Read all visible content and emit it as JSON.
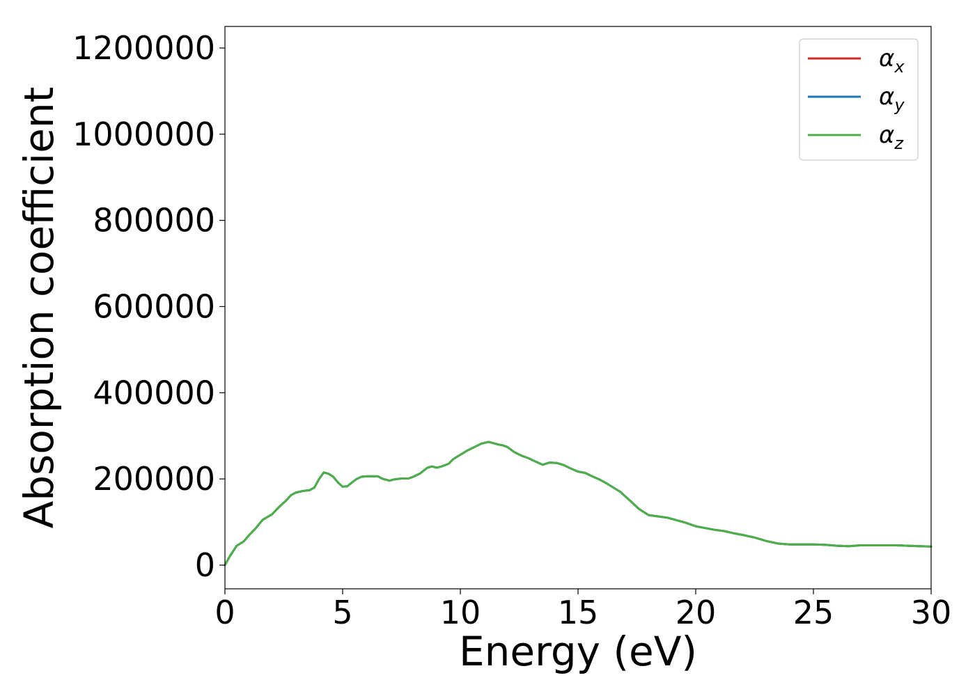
{
  "chart_data": {
    "type": "line",
    "title": "",
    "xlabel": "Energy (eV)",
    "ylabel": "Absorption coefficient",
    "xlim": [
      0,
      30
    ],
    "ylim": [
      -55000,
      1250000
    ],
    "xticks": [
      0,
      5,
      10,
      15,
      20,
      25,
      30
    ],
    "xtick_labels": [
      "0",
      "5",
      "10",
      "15",
      "20",
      "25",
      "30"
    ],
    "yticks": [
      0,
      200000,
      400000,
      600000,
      800000,
      1000000,
      1200000
    ],
    "ytick_labels": [
      "0",
      "200000",
      "400000",
      "600000",
      "800000",
      "1000000",
      "1200000"
    ],
    "grid": false,
    "legend_position": "top-right",
    "legend": [
      {
        "symbol": "α",
        "subscript": "x",
        "color": "#d62728"
      },
      {
        "symbol": "α",
        "subscript": "y",
        "color": "#1f77b4"
      },
      {
        "symbol": "α",
        "subscript": "z",
        "color": "#4daf4a"
      }
    ],
    "x": [
      0,
      0.2,
      0.5,
      0.8,
      1.0,
      1.3,
      1.6,
      2.0,
      2.3,
      2.6,
      2.8,
      3.0,
      3.3,
      3.6,
      3.8,
      4.0,
      4.2,
      4.4,
      4.6,
      4.8,
      5.0,
      5.2,
      5.4,
      5.6,
      5.8,
      6.0,
      6.2,
      6.5,
      6.7,
      7.0,
      7.2,
      7.5,
      7.8,
      8.0,
      8.3,
      8.6,
      8.8,
      9.0,
      9.2,
      9.5,
      9.7,
      10.0,
      10.3,
      10.6,
      10.9,
      11.2,
      11.4,
      11.6,
      11.8,
      12.0,
      12.3,
      12.6,
      12.9,
      13.2,
      13.5,
      13.8,
      14.1,
      14.4,
      14.7,
      15.0,
      15.3,
      15.6,
      15.9,
      16.2,
      16.5,
      16.8,
      17.2,
      17.6,
      18.0,
      18.4,
      18.8,
      19.2,
      19.6,
      20.0,
      20.4,
      20.8,
      21.2,
      21.6,
      22.0,
      22.5,
      23.0,
      23.5,
      24.0,
      24.5,
      25.0,
      25.5,
      26.0,
      26.5,
      27.0,
      27.5,
      28.0,
      28.5,
      29.0,
      29.5,
      30.0
    ],
    "series": [
      {
        "name": "α_x",
        "color": "#d62728",
        "values": [
          0,
          20000,
          45000,
          55000,
          68000,
          85000,
          105000,
          118000,
          135000,
          150000,
          162000,
          168000,
          172000,
          174000,
          180000,
          200000,
          215000,
          212000,
          205000,
          192000,
          182000,
          183000,
          192000,
          200000,
          205000,
          206000,
          206000,
          206000,
          200000,
          196000,
          199000,
          201000,
          201000,
          205000,
          213000,
          226000,
          229000,
          226000,
          229000,
          235000,
          246000,
          256000,
          266000,
          274000,
          282000,
          286000,
          283000,
          280000,
          278000,
          274000,
          262000,
          254000,
          248000,
          240000,
          233000,
          238000,
          237000,
          232000,
          224000,
          217000,
          214000,
          206000,
          199000,
          190000,
          180000,
          170000,
          150000,
          130000,
          116000,
          113000,
          110000,
          104000,
          98000,
          90000,
          86000,
          82000,
          79000,
          74000,
          70000,
          64000,
          56000,
          50000,
          48000,
          48000,
          48000,
          47000,
          45000,
          44000,
          46000,
          46000,
          46000,
          46000,
          45000,
          44000,
          43000
        ]
      },
      {
        "name": "α_y",
        "color": "#1f77b4",
        "values": [
          0,
          20000,
          45000,
          55000,
          68000,
          85000,
          105000,
          118000,
          135000,
          150000,
          162000,
          168000,
          172000,
          174000,
          180000,
          200000,
          215000,
          212000,
          205000,
          192000,
          182000,
          183000,
          192000,
          200000,
          205000,
          206000,
          206000,
          206000,
          200000,
          196000,
          199000,
          201000,
          201000,
          205000,
          213000,
          226000,
          229000,
          226000,
          229000,
          235000,
          246000,
          256000,
          266000,
          274000,
          282000,
          286000,
          283000,
          280000,
          278000,
          274000,
          262000,
          254000,
          248000,
          240000,
          233000,
          238000,
          237000,
          232000,
          224000,
          217000,
          214000,
          206000,
          199000,
          190000,
          180000,
          170000,
          150000,
          130000,
          116000,
          113000,
          110000,
          104000,
          98000,
          90000,
          86000,
          82000,
          79000,
          74000,
          70000,
          64000,
          56000,
          50000,
          48000,
          48000,
          48000,
          47000,
          45000,
          44000,
          46000,
          46000,
          46000,
          46000,
          45000,
          44000,
          43000
        ]
      },
      {
        "name": "α_z",
        "color": "#4daf4a",
        "values": [
          0,
          20000,
          45000,
          55000,
          68000,
          85000,
          105000,
          118000,
          135000,
          150000,
          162000,
          168000,
          172000,
          174000,
          180000,
          200000,
          215000,
          212000,
          205000,
          192000,
          182000,
          183000,
          192000,
          200000,
          205000,
          206000,
          206000,
          206000,
          200000,
          196000,
          199000,
          201000,
          201000,
          205000,
          213000,
          226000,
          229000,
          226000,
          229000,
          235000,
          246000,
          256000,
          266000,
          274000,
          282000,
          286000,
          283000,
          280000,
          278000,
          274000,
          262000,
          254000,
          248000,
          240000,
          233000,
          238000,
          237000,
          232000,
          224000,
          217000,
          214000,
          206000,
          199000,
          190000,
          180000,
          170000,
          150000,
          130000,
          116000,
          113000,
          110000,
          104000,
          98000,
          90000,
          86000,
          82000,
          79000,
          74000,
          70000,
          64000,
          56000,
          50000,
          48000,
          48000,
          48000,
          47000,
          45000,
          44000,
          46000,
          46000,
          46000,
          46000,
          45000,
          44000,
          43000
        ]
      }
    ]
  }
}
